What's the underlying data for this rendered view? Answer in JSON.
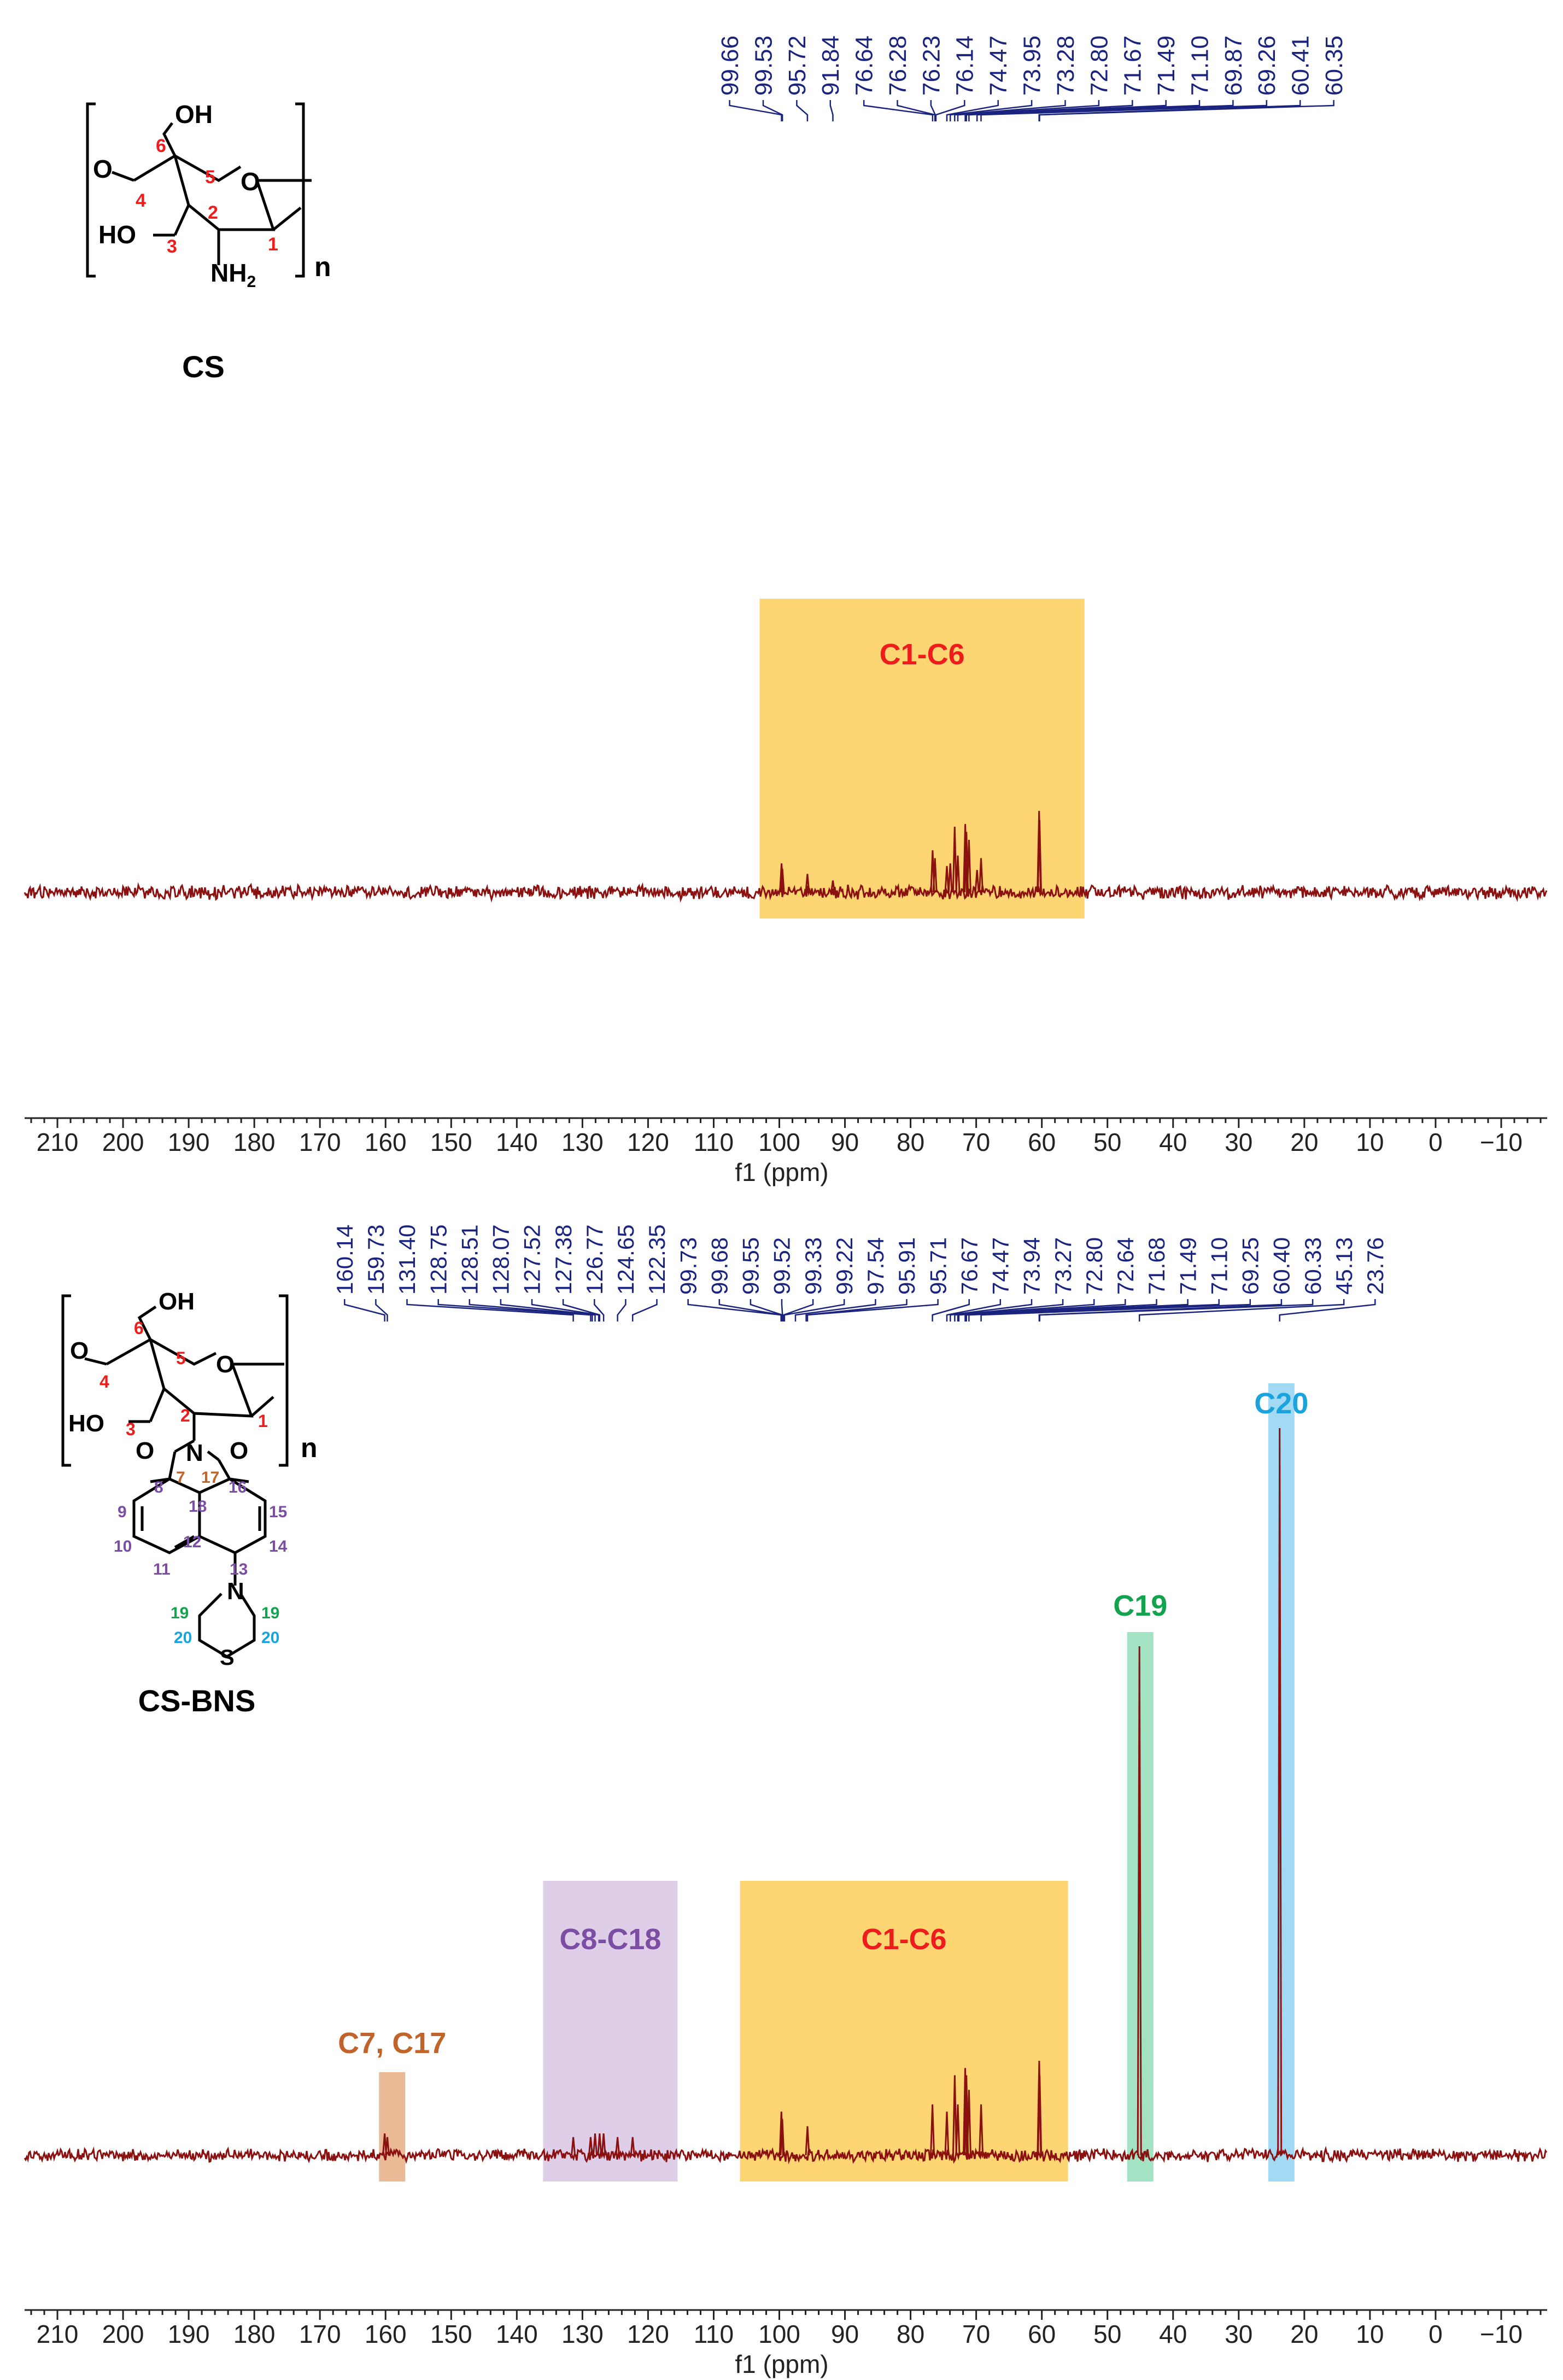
{
  "colors": {
    "spectrum": "#8b1111",
    "peak_labels": "#1a237e",
    "c1c6_box": "#fdd36a",
    "c8c18_box": "#dccbe6",
    "c7c17_box": "#e9b691",
    "c19_box": "#9ee0bf",
    "c20_box": "#9dd8f2",
    "red_label": "#ee1c1c",
    "purple_label": "#7b4ea3",
    "orange_label": "#c0642b",
    "green_label": "#13a24d",
    "cyan_label": "#1aa3dd",
    "axis": "#222222"
  },
  "chart_data": [
    {
      "type": "line",
      "title": "CS",
      "xlabel": "f1 (ppm)",
      "xlim": [
        215,
        -17
      ],
      "x_reversed": true,
      "xticks": [
        210,
        200,
        190,
        180,
        170,
        160,
        150,
        140,
        130,
        120,
        110,
        100,
        90,
        80,
        70,
        60,
        50,
        40,
        30,
        20,
        10,
        0,
        -10
      ],
      "xtick_labels": [
        "210",
        "200",
        "190",
        "180",
        "170",
        "160",
        "150",
        "140",
        "130",
        "120",
        "110",
        "100",
        "90",
        "80",
        "70",
        "60",
        "50",
        "40",
        "30",
        "20",
        "10",
        "0",
        "−10"
      ],
      "peak_labels": [
        "99.66",
        "99.53",
        "95.72",
        "91.84",
        "76.64",
        "76.28",
        "76.23",
        "76.14",
        "74.47",
        "73.95",
        "73.28",
        "72.80",
        "71.67",
        "71.49",
        "71.10",
        "69.87",
        "69.26",
        "60.41",
        "60.35"
      ],
      "peaks": [
        {
          "ppm": 99.66,
          "intensity": 0.22
        },
        {
          "ppm": 99.53,
          "intensity": 0.18
        },
        {
          "ppm": 95.72,
          "intensity": 0.14
        },
        {
          "ppm": 91.84,
          "intensity": 0.09
        },
        {
          "ppm": 76.64,
          "intensity": 0.32
        },
        {
          "ppm": 76.28,
          "intensity": 0.26
        },
        {
          "ppm": 74.47,
          "intensity": 0.2
        },
        {
          "ppm": 73.95,
          "intensity": 0.22
        },
        {
          "ppm": 73.28,
          "intensity": 0.5
        },
        {
          "ppm": 72.8,
          "intensity": 0.28
        },
        {
          "ppm": 71.67,
          "intensity": 0.52
        },
        {
          "ppm": 71.49,
          "intensity": 0.46
        },
        {
          "ppm": 71.1,
          "intensity": 0.4
        },
        {
          "ppm": 69.87,
          "intensity": 0.17
        },
        {
          "ppm": 69.26,
          "intensity": 0.26
        },
        {
          "ppm": 60.41,
          "intensity": 0.62
        },
        {
          "ppm": 60.35,
          "intensity": 0.55
        }
      ],
      "regions": [
        {
          "label": "C1-C6",
          "from": 103,
          "to": 53.5,
          "color_key": "c1c6_box",
          "label_color_key": "red_label"
        }
      ]
    },
    {
      "type": "line",
      "title": "CS-BNS",
      "xlabel": "f1 (ppm)",
      "xlim": [
        215,
        -17
      ],
      "x_reversed": true,
      "xticks": [
        210,
        200,
        190,
        180,
        170,
        160,
        150,
        140,
        130,
        120,
        110,
        100,
        90,
        80,
        70,
        60,
        50,
        40,
        30,
        20,
        10,
        0,
        -10
      ],
      "xtick_labels": [
        "210",
        "200",
        "190",
        "180",
        "170",
        "160",
        "150",
        "140",
        "130",
        "120",
        "110",
        "100",
        "90",
        "80",
        "70",
        "60",
        "50",
        "40",
        "30",
        "20",
        "10",
        "0",
        "−10"
      ],
      "peak_labels": [
        "160.14",
        "159.73",
        "131.40",
        "128.75",
        "128.51",
        "128.07",
        "127.52",
        "127.38",
        "126.77",
        "124.65",
        "122.35",
        "99.73",
        "99.68",
        "99.55",
        "99.52",
        "99.33",
        "99.22",
        "97.54",
        "95.91",
        "95.71",
        "76.67",
        "74.47",
        "73.94",
        "73.27",
        "72.80",
        "72.64",
        "71.68",
        "71.49",
        "71.10",
        "69.25",
        "60.40",
        "60.33",
        "45.13",
        "23.76"
      ],
      "peaks": [
        {
          "ppm": 160.14,
          "intensity": 0.03
        },
        {
          "ppm": 159.73,
          "intensity": 0.025
        },
        {
          "ppm": 131.4,
          "intensity": 0.025
        },
        {
          "ppm": 128.75,
          "intensity": 0.025
        },
        {
          "ppm": 128.07,
          "intensity": 0.03
        },
        {
          "ppm": 127.38,
          "intensity": 0.03
        },
        {
          "ppm": 126.77,
          "intensity": 0.03
        },
        {
          "ppm": 124.65,
          "intensity": 0.025
        },
        {
          "ppm": 122.35,
          "intensity": 0.025
        },
        {
          "ppm": 99.68,
          "intensity": 0.06
        },
        {
          "ppm": 99.55,
          "intensity": 0.05
        },
        {
          "ppm": 95.71,
          "intensity": 0.04
        },
        {
          "ppm": 76.67,
          "intensity": 0.07
        },
        {
          "ppm": 74.47,
          "intensity": 0.06
        },
        {
          "ppm": 73.27,
          "intensity": 0.11
        },
        {
          "ppm": 72.8,
          "intensity": 0.07
        },
        {
          "ppm": 71.68,
          "intensity": 0.12
        },
        {
          "ppm": 71.49,
          "intensity": 0.11
        },
        {
          "ppm": 71.1,
          "intensity": 0.09
        },
        {
          "ppm": 69.25,
          "intensity": 0.07
        },
        {
          "ppm": 60.4,
          "intensity": 0.13
        },
        {
          "ppm": 60.33,
          "intensity": 0.11
        },
        {
          "ppm": 45.13,
          "intensity": 0.7
        },
        {
          "ppm": 23.76,
          "intensity": 1.0
        }
      ],
      "regions": [
        {
          "label": "C7, C17",
          "from": 161,
          "to": 157,
          "color_key": "c7c17_box",
          "label_color_key": "orange_label"
        },
        {
          "label": "C8-C18",
          "from": 136,
          "to": 115.5,
          "color_key": "c8c18_box",
          "label_color_key": "purple_label"
        },
        {
          "label": "C1-C6",
          "from": 106,
          "to": 56,
          "color_key": "c1c6_box",
          "label_color_key": "red_label"
        },
        {
          "label": "C19",
          "from": 47,
          "to": 43,
          "color_key": "c19_box",
          "label_color_key": "green_label"
        },
        {
          "label": "C20",
          "from": 25.5,
          "to": 21.5,
          "color_key": "c20_box",
          "label_color_key": "cyan_label"
        }
      ]
    }
  ],
  "structures": {
    "cs": {
      "name": "CS",
      "atom_labels": {
        "oh": "OH",
        "o_ring": "O",
        "o_link": "O",
        "ho": "HO",
        "nh2": "NH",
        "nh2_sub": "2",
        "repeat": "n"
      },
      "carbon_numbers": [
        "6",
        "5",
        "4",
        "3",
        "2",
        "1"
      ]
    },
    "cs_bns": {
      "name": "CS-BNS",
      "atom_labels": {
        "oh": "OH",
        "o_ring": "O",
        "o_link": "O",
        "ho": "HO",
        "n_imide": "N",
        "o_left": "O",
        "o_right": "O",
        "n_amine": "N",
        "s": "S",
        "repeat": "n"
      },
      "carbon_numbers": {
        "sugar": [
          "6",
          "5",
          "4",
          "3",
          "2",
          "1"
        ],
        "imide": [
          "7",
          "17"
        ],
        "naph": [
          "8",
          "9",
          "10",
          "11",
          "12",
          "18",
          "16",
          "15",
          "14",
          "13"
        ],
        "c19": [
          "19",
          "19"
        ],
        "c20": [
          "20",
          "20"
        ]
      }
    }
  }
}
